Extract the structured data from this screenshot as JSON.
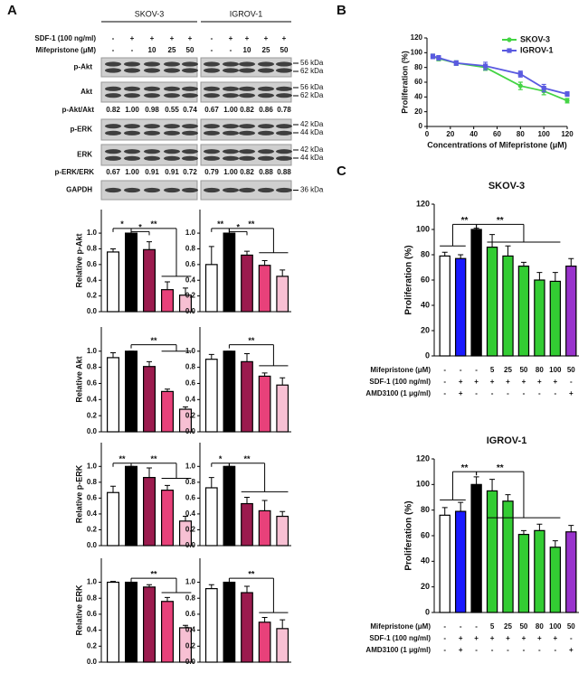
{
  "panel_labels": [
    "A",
    "B",
    "C"
  ],
  "blot": {
    "cell_lines": [
      "SKOV-3",
      "IGROV-1"
    ],
    "conditions": [
      {
        "label": "SDF-1 (100 ng/ml)",
        "lanes": [
          [
            "-",
            "+",
            "+",
            "+",
            "+"
          ],
          [
            "-",
            "+",
            "+",
            "+",
            "+"
          ]
        ]
      },
      {
        "label": "Mifepristone (μM)",
        "lanes": [
          [
            "-",
            "-",
            "10",
            "25",
            "50"
          ],
          [
            "-",
            "-",
            "10",
            "25",
            "50"
          ]
        ]
      }
    ],
    "rows": [
      {
        "label": "p-Akt",
        "markers": [
          "56 kDa",
          "62 kDa"
        ]
      },
      {
        "label": "Akt",
        "markers": [
          "56 kDa",
          "62 kDa"
        ]
      },
      {
        "label": "p-Akt/Akt",
        "ratios": [
          [
            "0.82",
            "1.00",
            "0.98",
            "0.55",
            "0.74"
          ],
          [
            "0.67",
            "1.00",
            "0.82",
            "0.86",
            "0.78"
          ]
        ]
      },
      {
        "label": "p-ERK",
        "markers": [
          "42 kDa",
          "44 kDa"
        ]
      },
      {
        "label": "ERK",
        "markers": [
          "42 kDa",
          "44 kDa"
        ]
      },
      {
        "label": "p-ERK/ERK",
        "ratios": [
          [
            "0.67",
            "1.00",
            "0.91",
            "0.91",
            "0.72"
          ],
          [
            "0.79",
            "1.00",
            "0.82",
            "0.88",
            "0.88"
          ]
        ]
      },
      {
        "label": "GAPDH",
        "markers": [
          "36 kDa"
        ]
      }
    ]
  },
  "chart_data": [
    {
      "type": "bar",
      "ylabel": "Relative p-Akt",
      "values": [
        0.76,
        1.0,
        0.79,
        0.28,
        0.21
      ],
      "errors": [
        0.04,
        0,
        0.1,
        0.1,
        0.09
      ],
      "colors": [
        "#ffffff",
        "#000000",
        "#9b1b4e",
        "#e8417a",
        "#f7c0d3"
      ],
      "ylim": [
        0,
        1.3
      ],
      "yticks": [
        {
          "value": 0,
          "label": "0.0"
        },
        0.2,
        0.4,
        0.6,
        0.8,
        {
          "value": 1,
          "label": "1.0"
        }
      ],
      "annotations": [
        "*",
        "*",
        "**"
      ]
    },
    {
      "type": "bar",
      "values": [
        0.6,
        1.0,
        0.72,
        0.59,
        0.45
      ],
      "errors": [
        0.23,
        0,
        0.05,
        0.06,
        0.08
      ],
      "colors": [
        "#ffffff",
        "#000000",
        "#9b1b4e",
        "#e8417a",
        "#f7c0d3"
      ],
      "ylim": [
        0,
        1.3
      ],
      "yticks": [
        {
          "value": 0,
          "label": "0.0"
        },
        0.2,
        0.4,
        0.6,
        0.8,
        {
          "value": 1,
          "label": "1.0"
        }
      ],
      "annotations": [
        "**",
        "*",
        "**"
      ]
    },
    {
      "type": "bar",
      "ylabel": "Relative Akt",
      "values": [
        0.92,
        1.0,
        0.81,
        0.5,
        0.28
      ],
      "errors": [
        0.06,
        0,
        0.06,
        0.03,
        0.03
      ],
      "colors": [
        "#ffffff",
        "#000000",
        "#9b1b4e",
        "#e8417a",
        "#f7c0d3"
      ],
      "ylim": [
        0,
        1.3
      ],
      "yticks": [
        {
          "value": 0,
          "label": "0.0"
        },
        0.2,
        0.4,
        0.6,
        0.8,
        {
          "value": 1,
          "label": "1.0"
        }
      ],
      "annotations": [
        "**"
      ]
    },
    {
      "type": "bar",
      "values": [
        0.9,
        1.0,
        0.87,
        0.69,
        0.58
      ],
      "errors": [
        0.06,
        0,
        0.1,
        0.04,
        0.09
      ],
      "colors": [
        "#ffffff",
        "#000000",
        "#9b1b4e",
        "#e8417a",
        "#f7c0d3"
      ],
      "ylim": [
        0,
        1.3
      ],
      "yticks": [
        {
          "value": 0,
          "label": "0.0"
        },
        0.2,
        0.4,
        0.6,
        0.8,
        {
          "value": 1,
          "label": "1.0"
        }
      ],
      "annotations": [
        "**"
      ]
    },
    {
      "type": "bar",
      "ylabel": "Relative p-ERK",
      "values": [
        0.67,
        1.0,
        0.86,
        0.7,
        0.31
      ],
      "errors": [
        0.08,
        0,
        0.12,
        0.06,
        0.06
      ],
      "colors": [
        "#ffffff",
        "#000000",
        "#9b1b4e",
        "#e8417a",
        "#f7c0d3"
      ],
      "ylim": [
        0,
        1.3
      ],
      "yticks": [
        {
          "value": 0,
          "label": "0.0"
        },
        0.2,
        0.4,
        0.6,
        0.8,
        {
          "value": 1,
          "label": "1.0"
        }
      ],
      "annotations": [
        "**",
        "**"
      ]
    },
    {
      "type": "bar",
      "values": [
        0.73,
        1.0,
        0.53,
        0.44,
        0.37
      ],
      "errors": [
        0.13,
        0,
        0.08,
        0.13,
        0.06
      ],
      "colors": [
        "#ffffff",
        "#000000",
        "#9b1b4e",
        "#e8417a",
        "#f7c0d3"
      ],
      "ylim": [
        0,
        1.3
      ],
      "yticks": [
        {
          "value": 0,
          "label": "0.0"
        },
        0.2,
        0.4,
        0.6,
        0.8,
        {
          "value": 1,
          "label": "1.0"
        }
      ],
      "annotations": [
        "*",
        "**"
      ]
    },
    {
      "type": "bar",
      "ylabel": "Relative ERK",
      "values": [
        1.0,
        1.0,
        0.94,
        0.76,
        0.43
      ],
      "errors": [
        0.01,
        0,
        0.03,
        0.05,
        0.03
      ],
      "colors": [
        "#ffffff",
        "#000000",
        "#9b1b4e",
        "#e8417a",
        "#f7c0d3"
      ],
      "ylim": [
        0,
        1.3
      ],
      "yticks": [
        {
          "value": 0,
          "label": "0.0"
        },
        0.2,
        0.4,
        0.6,
        0.8,
        {
          "value": 1,
          "label": "1.0"
        }
      ],
      "annotations": [
        "**"
      ]
    },
    {
      "type": "bar",
      "values": [
        0.92,
        1.0,
        0.87,
        0.5,
        0.42
      ],
      "errors": [
        0.05,
        0,
        0.08,
        0.06,
        0.11
      ],
      "colors": [
        "#ffffff",
        "#000000",
        "#9b1b4e",
        "#e8417a",
        "#f7c0d3"
      ],
      "ylim": [
        0,
        1.3
      ],
      "yticks": [
        {
          "value": 0,
          "label": "0.0"
        },
        0.2,
        0.4,
        0.6,
        0.8,
        {
          "value": 1,
          "label": "1.0"
        }
      ],
      "annotations": [
        "**"
      ]
    },
    {
      "type": "line",
      "xlabel": "Concentrations of Mifepristone (μM)",
      "ylabel": "Proliferation (%)",
      "x": [
        5,
        10,
        25,
        50,
        80,
        100,
        120
      ],
      "xlim": [
        0,
        120
      ],
      "ylim": [
        0,
        120
      ],
      "xticks": [
        0,
        20,
        40,
        60,
        80,
        100,
        120
      ],
      "yticks": [
        0,
        20,
        40,
        60,
        80,
        100,
        120
      ],
      "legend": "upper right",
      "series": [
        {
          "name": "SKOV-3",
          "color": "#44d444",
          "values": [
            95,
            92,
            86,
            80,
            55,
            48,
            35
          ],
          "errors": [
            3,
            3,
            3,
            4,
            5,
            5,
            3
          ]
        },
        {
          "name": "IGROV-1",
          "color": "#5a5ae0",
          "values": [
            95,
            93,
            86,
            82,
            71,
            52,
            44
          ],
          "errors": [
            3,
            3,
            3,
            5,
            4,
            5,
            3
          ]
        }
      ]
    },
    {
      "type": "bar",
      "title": "SKOV-3",
      "ylabel": "Proliferation (%)",
      "values": [
        79,
        77,
        100,
        86,
        79,
        71,
        60,
        59,
        71
      ],
      "errors": [
        3,
        3,
        1,
        10,
        8,
        3,
        6,
        7,
        6
      ],
      "colors": [
        "#ffffff",
        "#1a1aff",
        "#000000",
        "#33cc33",
        "#33cc33",
        "#33cc33",
        "#33cc33",
        "#33cc33",
        "#9933cc"
      ],
      "ylim": [
        0,
        120
      ],
      "yticks": [
        0,
        20,
        40,
        60,
        80,
        100,
        120
      ],
      "annotations": [
        "**",
        "**"
      ],
      "conditions": [
        {
          "label": "Mifepristone (μM)",
          "values": [
            "-",
            "-",
            "-",
            "5",
            "25",
            "50",
            "80",
            "100",
            "50"
          ]
        },
        {
          "label": "SDF-1 (100 ng/ml)",
          "values": [
            "-",
            "+",
            "+",
            "+",
            "+",
            "+",
            "+",
            "+",
            "-"
          ]
        },
        {
          "label": "AMD3100 (1 μg/ml)",
          "values": [
            "-",
            "+",
            "-",
            "-",
            "-",
            "-",
            "-",
            "-",
            "+"
          ]
        }
      ]
    },
    {
      "type": "bar",
      "title": "IGROV-1",
      "ylabel": "Proliferation (%)",
      "values": [
        76,
        79,
        100,
        95,
        87,
        61,
        64,
        51,
        63
      ],
      "errors": [
        6,
        7,
        6,
        9,
        5,
        3,
        5,
        5,
        5
      ],
      "colors": [
        "#ffffff",
        "#1a1aff",
        "#000000",
        "#33cc33",
        "#33cc33",
        "#33cc33",
        "#33cc33",
        "#33cc33",
        "#9933cc"
      ],
      "ylim": [
        0,
        120
      ],
      "yticks": [
        0,
        20,
        40,
        60,
        80,
        100,
        120
      ],
      "annotations": [
        "**",
        "**"
      ],
      "conditions": [
        {
          "label": "Mifepristone (μM)",
          "values": [
            "-",
            "-",
            "-",
            "5",
            "25",
            "50",
            "80",
            "100",
            "50"
          ]
        },
        {
          "label": "SDF-1 (100 ng/ml)",
          "values": [
            "-",
            "+",
            "+",
            "+",
            "+",
            "+",
            "+",
            "+",
            "-"
          ]
        },
        {
          "label": "AMD3100 (1 μg/ml)",
          "values": [
            "-",
            "+",
            "-",
            "-",
            "-",
            "-",
            "-",
            "-",
            "+"
          ]
        }
      ]
    }
  ]
}
